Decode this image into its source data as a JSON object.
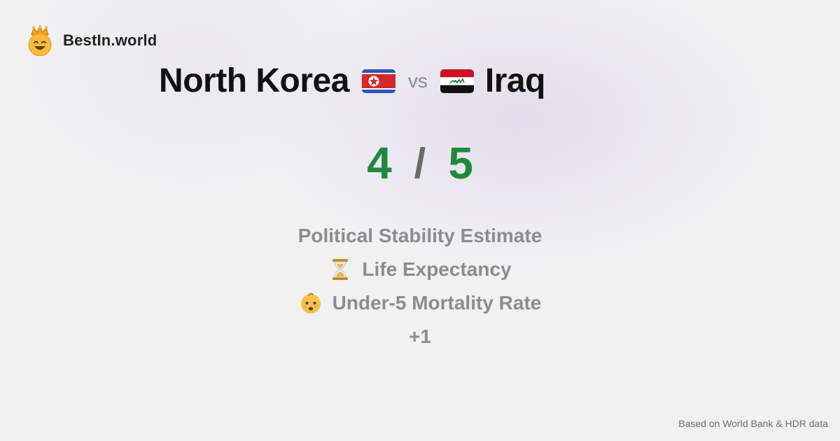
{
  "brand": {
    "name": "BestIn.world",
    "icon": "crown-smiley-icon"
  },
  "comparison": {
    "left_country": "North Korea",
    "vs_label": "vs",
    "right_country": "Iraq",
    "left_flag_icon": "north-korea-flag-icon",
    "right_flag_icon": "iraq-flag-icon"
  },
  "score": {
    "left": "4",
    "separator": "/",
    "right": "5"
  },
  "metrics": [
    {
      "label": "Political Stability Estimate",
      "icon": ""
    },
    {
      "label": "Life Expectancy",
      "icon": "hourglass-icon"
    },
    {
      "label": "Under-5 Mortality Rate",
      "icon": "baby-icon"
    }
  ],
  "more_label": "+1",
  "footer": "Based on World Bank & HDR data",
  "colors": {
    "score": "#1d8a3a",
    "muted": "#8c8c8c",
    "title": "#111111"
  }
}
